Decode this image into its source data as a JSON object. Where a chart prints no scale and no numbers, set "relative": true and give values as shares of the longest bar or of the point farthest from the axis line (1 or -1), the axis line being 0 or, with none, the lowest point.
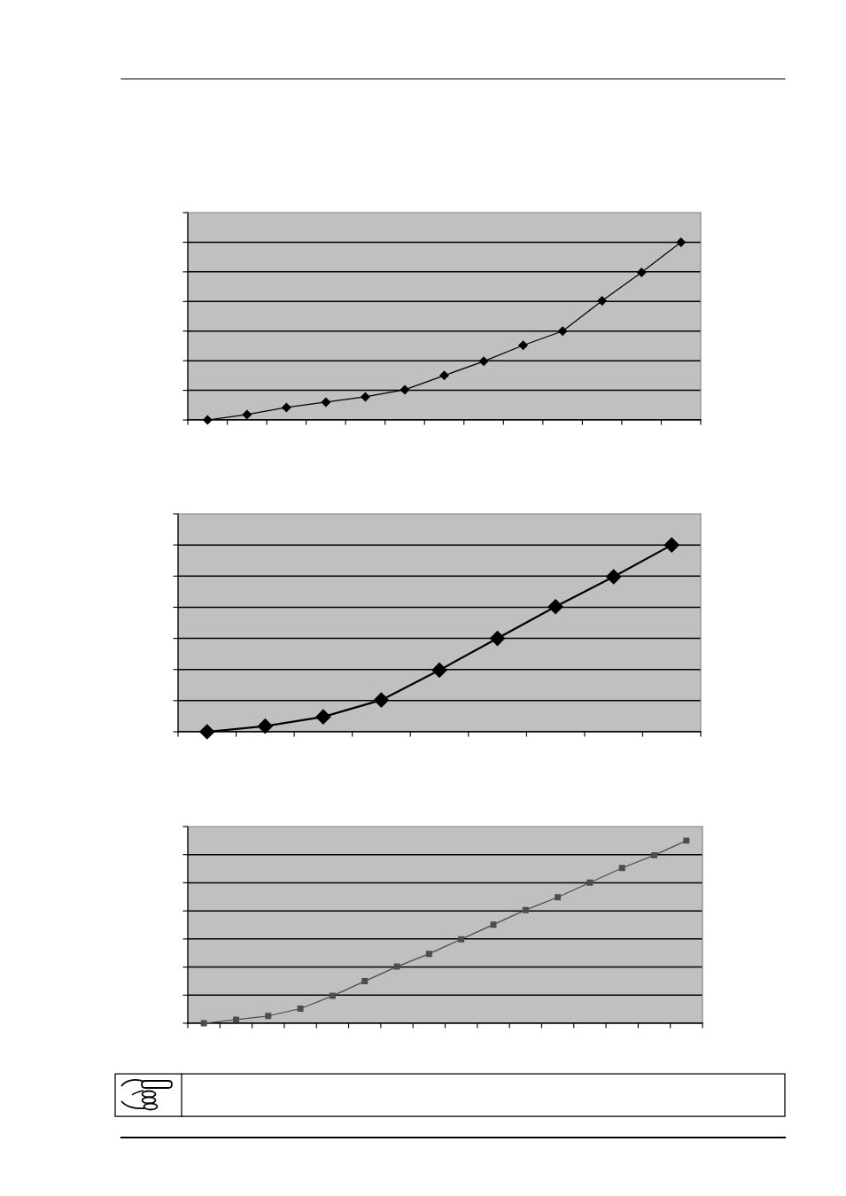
{
  "chart_data": [
    {
      "type": "line",
      "relative": true,
      "categories": [
        null,
        null,
        null,
        null,
        null,
        null,
        null,
        null,
        null,
        null,
        null,
        null,
        null
      ],
      "series": [
        {
          "color": "#000000",
          "values": [
            0,
            0.03,
            0.07,
            0.1,
            0.13,
            0.17,
            0.25,
            0.33,
            0.42,
            0.5,
            0.67,
            0.83,
            1
          ]
        }
      ],
      "marker": "diamond",
      "line_style": "solid",
      "grid": "y"
    },
    {
      "type": "line",
      "relative": true,
      "categories": [
        null,
        null,
        null,
        null,
        null,
        null,
        null,
        null,
        null
      ],
      "series": [
        {
          "color": "#000000",
          "values": [
            0,
            0.03,
            0.08,
            0.17,
            0.33,
            0.5,
            0.67,
            0.83,
            1
          ]
        }
      ],
      "marker": "diamond",
      "line_style": "solid",
      "grid": "y"
    },
    {
      "type": "line",
      "relative": true,
      "categories": [
        null,
        null,
        null,
        null,
        null,
        null,
        null,
        null,
        null,
        null,
        null,
        null,
        null,
        null,
        null,
        null
      ],
      "series": [
        {
          "color": "#4d4d4d",
          "values": [
            0,
            0.02,
            0.04,
            0.08,
            0.15,
            0.23,
            0.31,
            0.38,
            0.46,
            0.54,
            0.62,
            0.69,
            0.77,
            0.85,
            0.92,
            1
          ]
        }
      ],
      "marker": "square",
      "line_style": "solid",
      "grid": "y"
    }
  ]
}
